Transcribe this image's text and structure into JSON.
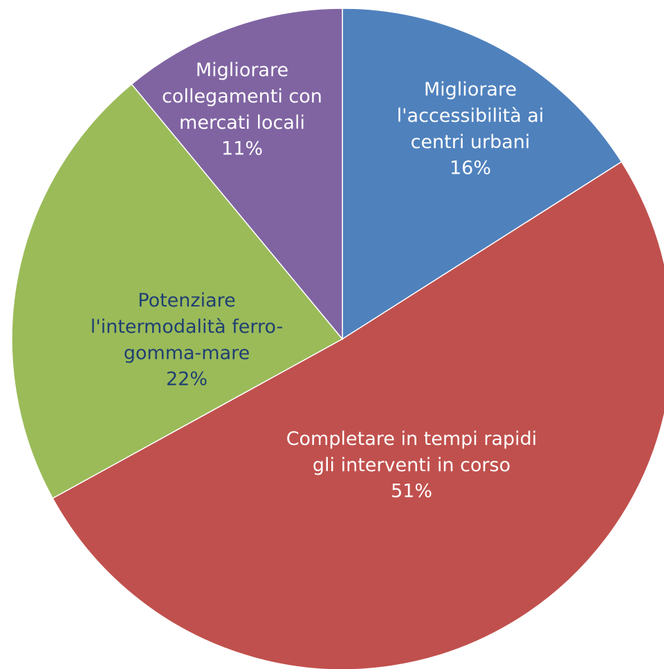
{
  "chart_data": {
    "type": "pie",
    "categories": [
      "Migliorare l'accessibilità ai centri urbani",
      "Completare in tempi rapidi gli interventi in corso",
      "Potenziare l'intermodalità ferro-gomma-mare",
      "Migliorare collegamenti con mercati locali"
    ],
    "values": [
      16,
      51,
      22,
      11
    ],
    "value_labels": [
      "16%",
      "51%",
      "22%",
      "11%"
    ],
    "colors": [
      "#4f81bd",
      "#c0504d",
      "#9bbb59",
      "#8064a2"
    ],
    "label_colors": [
      "#ffffff",
      "#ffffff",
      "#1f3f73",
      "#ffffff"
    ]
  }
}
